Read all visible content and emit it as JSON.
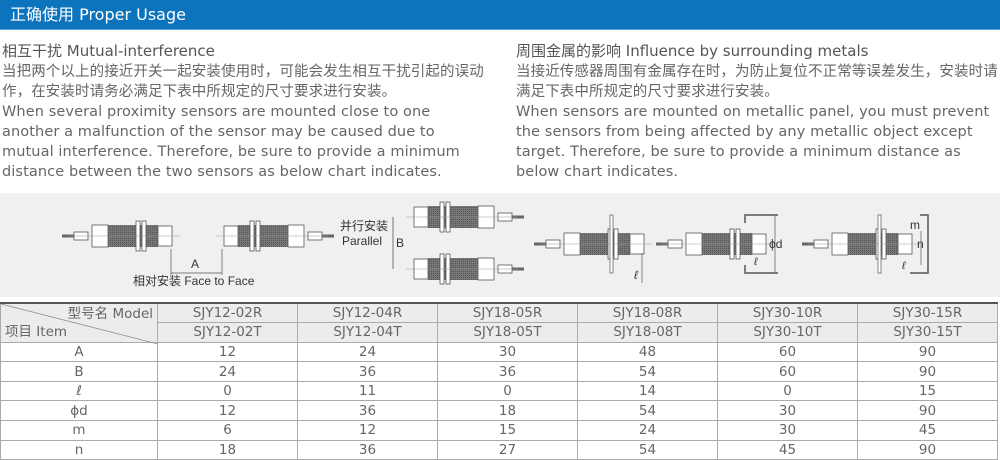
{
  "header": {
    "title": "正确使用 Proper Usage",
    "color": "#0c73bd"
  },
  "left": {
    "title": "相互干扰 Mutual-interference",
    "zh": "当把两个以上的接近开关一起安装使用时，可能会发生相互干扰引起的误动作，在安装时请务必满足下表中所规定的尺寸要求进行安装。",
    "en": "When several proximity sensors are mounted close to one another a malfunction of the sensor may be caused due to mutual interference. Therefore, be sure to provide a minimum distance between the two sensors as below chart indicates."
  },
  "right": {
    "title": "周围金属的影响 Influence by surrounding metals",
    "zh": "当接近传感器周围有金属存在时，为防止复位不正常等误差发生，安装时请满足下表中所规定的尺寸要求进行安装。",
    "en": "When sensors are mounted on metallic panel, you must prevent the sensors from being affected by any metallic object except target. Therefore, be sure to provide a minimum distance as below chart indicates."
  },
  "diagram": {
    "face_to_face": "相对安装 Face to Face",
    "label_a": "A",
    "parallel_zh": "并行安装",
    "parallel_en": "Parallel",
    "label_b": "B",
    "label_l": "ℓ",
    "label_od": "ϕd",
    "label_m": "m",
    "label_n": "n"
  },
  "table": {
    "corner_model": "型号名 Model",
    "corner_item": "项目 Item",
    "models_r": [
      "SJY12-02R",
      "SJY12-04R",
      "SJY18-05R",
      "SJY18-08R",
      "SJY30-10R",
      "SJY30-15R"
    ],
    "models_t": [
      "SJY12-02T",
      "SJY12-04T",
      "SJY18-05T",
      "SJY18-08T",
      "SJY30-10T",
      "SJY30-15T"
    ],
    "rows": [
      {
        "label": "A",
        "values": [
          "12",
          "24",
          "30",
          "48",
          "60",
          "90"
        ]
      },
      {
        "label": "B",
        "values": [
          "24",
          "36",
          "36",
          "54",
          "60",
          "90"
        ]
      },
      {
        "label": "ℓ",
        "values": [
          "0",
          "11",
          "0",
          "14",
          "0",
          "15"
        ]
      },
      {
        "label": "ϕd",
        "values": [
          "12",
          "36",
          "18",
          "54",
          "30",
          "90"
        ]
      },
      {
        "label": "m",
        "values": [
          "6",
          "12",
          "15",
          "24",
          "30",
          "45"
        ]
      },
      {
        "label": "n",
        "values": [
          "18",
          "36",
          "27",
          "54",
          "45",
          "90"
        ]
      }
    ]
  }
}
